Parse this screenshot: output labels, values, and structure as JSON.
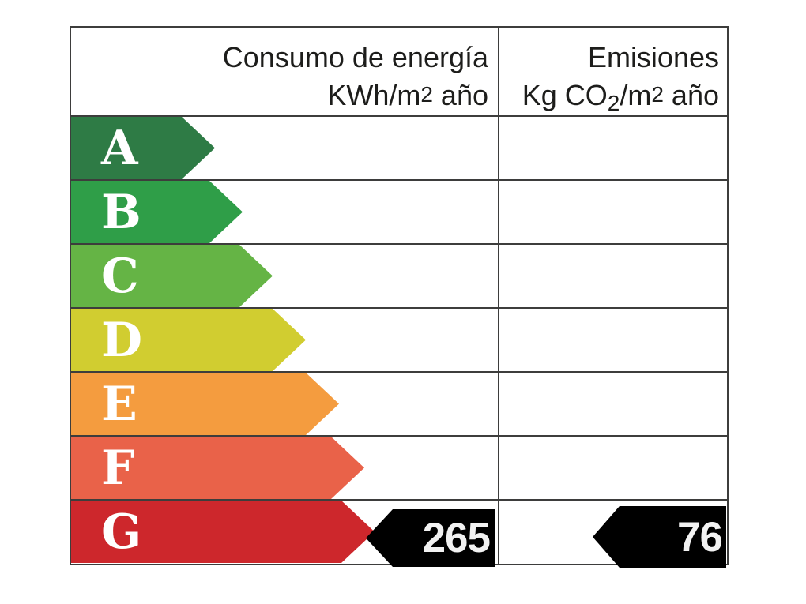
{
  "header": {
    "consumo": {
      "line1": "Consumo de energía",
      "line2_prefix": "KWh/m",
      "line2_sup": "2",
      "line2_suffix": " año"
    },
    "emisiones": {
      "line1": "Emisiones",
      "line2_prefix": "Kg CO",
      "line2_sub": "2",
      "line2_mid": "/m",
      "line2_sup": "2",
      "line2_suffix": " año"
    }
  },
  "ratings": [
    {
      "letter": "A",
      "color": "#2e7b45"
    },
    {
      "letter": "B",
      "color": "#2f9e48"
    },
    {
      "letter": "C",
      "color": "#65b445"
    },
    {
      "letter": "D",
      "color": "#d1cd30"
    },
    {
      "letter": "E",
      "color": "#f49c3f"
    },
    {
      "letter": "F",
      "color": "#e96249"
    },
    {
      "letter": "G",
      "color": "#cd272c"
    }
  ],
  "values": {
    "consumo": "265",
    "emisiones": "76",
    "indicator_color": "#000000",
    "indicated_row": "G"
  },
  "colors": {
    "grid": "#3d3d3c",
    "header_text": "#1d1d1b",
    "letter_text": "#ffffff",
    "value_text": "#f2f2f2",
    "background": "#ffffff"
  },
  "chart_data": {
    "type": "table",
    "columns": [
      "Consumo de energía KWh/m2 año",
      "Emisiones Kg CO2/m2 año"
    ],
    "rating_scale": [
      "A",
      "B",
      "C",
      "D",
      "E",
      "F",
      "G"
    ],
    "indicated_rating": "G",
    "values": {
      "consumo_de_energia_kwh_m2_ano": 265,
      "emisiones_kg_co2_m2_ano": 76
    },
    "legend_position": "none",
    "grid": true
  }
}
